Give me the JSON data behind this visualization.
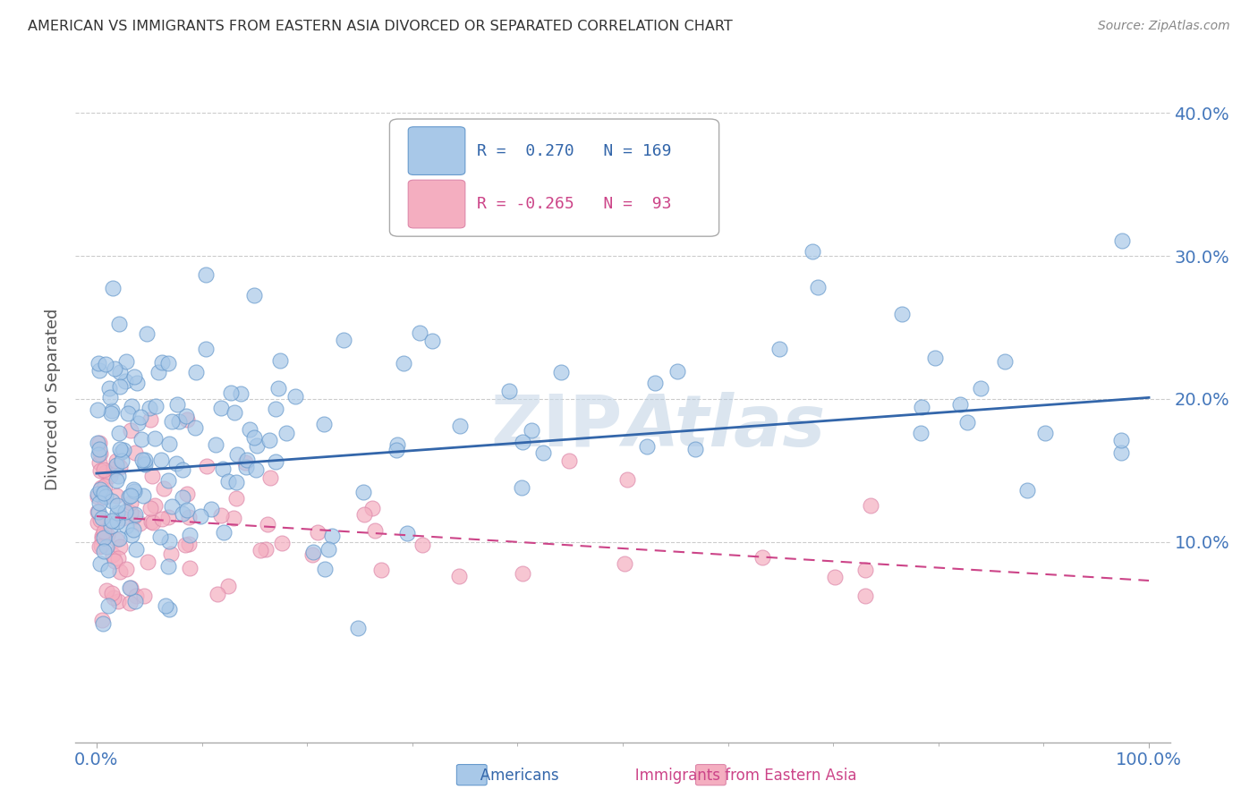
{
  "title": "AMERICAN VS IMMIGRANTS FROM EASTERN ASIA DIVORCED OR SEPARATED CORRELATION CHART",
  "source": "Source: ZipAtlas.com",
  "xlabel_ticks": [
    "0.0%",
    "100.0%"
  ],
  "ylabel_label": "Divorced or Separated",
  "ylabel_ticks": [
    "10.0%",
    "20.0%",
    "30.0%",
    "40.0%"
  ],
  "watermark": "ZIPAtlas",
  "legend_blue_r": "0.270",
  "legend_blue_n": "169",
  "legend_pink_r": "-0.265",
  "legend_pink_n": "93",
  "blue_color": "#a8c8e8",
  "blue_edge_color": "#6699cc",
  "blue_line_color": "#3366aa",
  "pink_color": "#f4aec0",
  "pink_edge_color": "#dd88aa",
  "pink_line_color": "#cc4488",
  "tick_color": "#4477bb",
  "background_color": "#ffffff",
  "grid_color": "#cccccc",
  "blue_trend_start_y": 0.148,
  "blue_trend_end_y": 0.201,
  "pink_trend_start_y": 0.118,
  "pink_trend_end_y": 0.073,
  "xlim": [
    -0.02,
    1.02
  ],
  "ylim": [
    -0.04,
    0.44
  ]
}
